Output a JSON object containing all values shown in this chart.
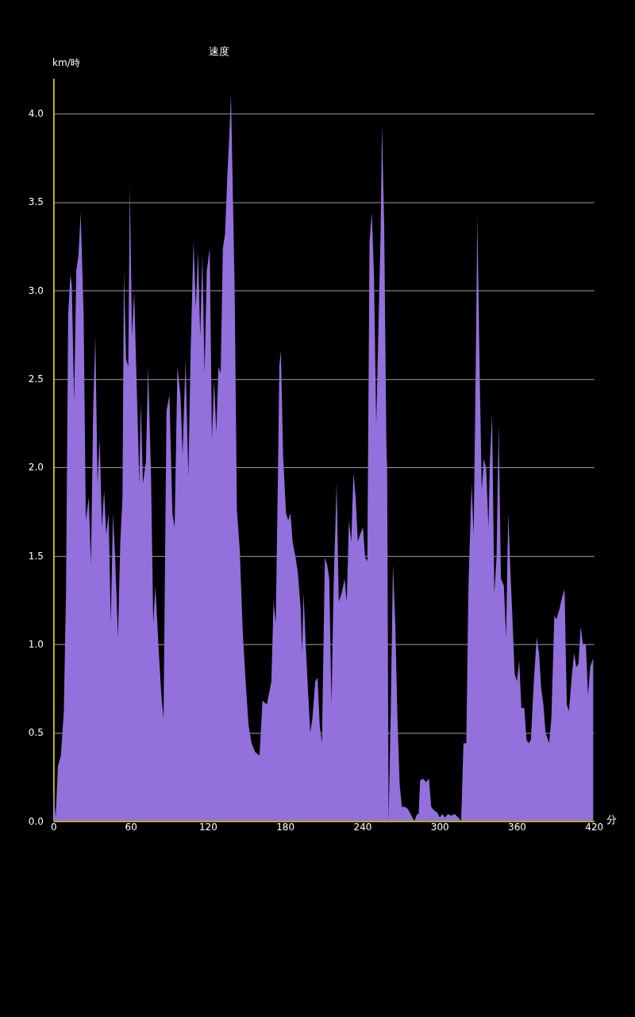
{
  "chart_data": {
    "type": "area",
    "title": "速度",
    "xlabel": "分",
    "ylabel": "km/時",
    "xlim": [
      0,
      420
    ],
    "ylim": [
      0,
      4.2
    ],
    "xticks": [
      0,
      60,
      120,
      180,
      240,
      300,
      360,
      420
    ],
    "yticks": [
      {
        "value": 0,
        "label": "0.0"
      },
      {
        "value": 0.5,
        "label": "0.5"
      },
      {
        "value": 1,
        "label": "1.0"
      },
      {
        "value": 1.5,
        "label": "1.5"
      },
      {
        "value": 2,
        "label": "2.0"
      },
      {
        "value": 2.5,
        "label": "2.5"
      },
      {
        "value": 3,
        "label": "3.0"
      },
      {
        "value": 3.5,
        "label": "3.5"
      },
      {
        "value": 4,
        "label": "4.0"
      }
    ],
    "grid": "y",
    "series": [
      {
        "color": "#9370db",
        "x": [
          0,
          1.7,
          3.4,
          5.7,
          8,
          9.7,
          11.4,
          13.1,
          14.2,
          16,
          17.7,
          19.4,
          21.1,
          23.4,
          25.1,
          27.4,
          29.1,
          30.8,
          32.5,
          34.2,
          35.9,
          37.6,
          39.3,
          41,
          42.8,
          44.5,
          46.2,
          47.9,
          50.1,
          51.9,
          53.6,
          54.7,
          56.4,
          58.1,
          59.3,
          61,
          62.7,
          64.4,
          66.7,
          67.8,
          69.5,
          71.8,
          73.5,
          75.8,
          77.5,
          79.2,
          81.5,
          83.8,
          85.5,
          87.8,
          90.1,
          92.4,
          94.1,
          96.3,
          98.6,
          100.3,
          102.6,
          104.8,
          106.6,
          108.8,
          110.6,
          112.3,
          114,
          115.7,
          117.4,
          119.1,
          121.4,
          123.1,
          124.8,
          126.5,
          128.2,
          129.9,
          131.6,
          133.3,
          135.1,
          136.8,
          137.9,
          139,
          140.8,
          142.5,
          144.7,
          147,
          149.3,
          151.6,
          153.9,
          156.7,
          160.1,
          162.4,
          165.8,
          169.3,
          171,
          172.7,
          174.4,
          175.5,
          176.7,
          178.4,
          180.7,
          182.4,
          184.1,
          185.8,
          188.1,
          189.8,
          192.1,
          193.2,
          194.3,
          196,
          197.7,
          199.5,
          201.2,
          203.4,
          205.2,
          206.9,
          208.6,
          210.9,
          212.6,
          214.3,
          216,
          217.7,
          220,
          221.7,
          224,
          226.2,
          227.9,
          229.6,
          231.4,
          233.1,
          234.8,
          236.5,
          238.2,
          240.5,
          242.2,
          243.9,
          245.6,
          247.4,
          249.1,
          250.8,
          252.5,
          254.2,
          255.3,
          257,
          258.7,
          259.3,
          260.4,
          262.1,
          263.8,
          265.6,
          267.3,
          269,
          270.7,
          273,
          275.2,
          277.5,
          280.4,
          282.6,
          283.8,
          284.9,
          287.2,
          289.5,
          291.8,
          293.5,
          295.8,
          298,
          300.3,
          302,
          304.3,
          306.6,
          308.9,
          311.7,
          314.6,
          316.8,
          318.6,
          320.8,
          322.5,
          323.7,
          324.9,
          326.5,
          328.3,
          329.4,
          331.1,
          332.8,
          334.5,
          336.3,
          338,
          339.1,
          340.8,
          342.6,
          344.3,
          346,
          347.7,
          350,
          351.7,
          353.4,
          355.1,
          356.8,
          358.4,
          360.2,
          361.9,
          363.6,
          365.9,
          367.6,
          369.3,
          371,
          373.3,
          375.5,
          377.3,
          379,
          380.7,
          382.4,
          385.2,
          386.9,
          389.2,
          390.9,
          393.2,
          395.4,
          397.2,
          398.9,
          400.6,
          402.9,
          404.6,
          406.3,
          408,
          409.7,
          411.4,
          413.7,
          415.4,
          417.1,
          419.4
        ],
        "values": [
          0.17,
          0.02,
          0.31,
          0.37,
          0.62,
          1.29,
          2.86,
          3.09,
          3.03,
          2.37,
          3.11,
          3.2,
          3.44,
          2.86,
          1.7,
          1.83,
          1.45,
          2.32,
          2.74,
          1.91,
          2.16,
          1.66,
          1.87,
          1.62,
          1.74,
          1.12,
          1.74,
          1.49,
          1.04,
          1.58,
          1.83,
          3.11,
          2.61,
          2.57,
          3.59,
          2.74,
          2.99,
          2.53,
          1.91,
          2.37,
          1.91,
          2.03,
          2.57,
          1.95,
          1.12,
          1.33,
          1.0,
          0.71,
          0.58,
          2.32,
          2.41,
          1.74,
          1.66,
          2.57,
          2.41,
          2.07,
          2.61,
          1.95,
          2.66,
          3.28,
          2.9,
          3.22,
          2.74,
          3.2,
          2.53,
          3.11,
          3.24,
          2.16,
          2.49,
          2.2,
          2.57,
          2.53,
          3.24,
          3.32,
          3.65,
          3.9,
          4.11,
          3.69,
          2.99,
          1.76,
          1.54,
          1.08,
          0.79,
          0.54,
          0.44,
          0.39,
          0.37,
          0.68,
          0.66,
          0.79,
          1.24,
          1.12,
          1.95,
          2.57,
          2.66,
          2.07,
          1.74,
          1.7,
          1.74,
          1.58,
          1.49,
          1.41,
          1.2,
          0.95,
          1.29,
          1.0,
          0.75,
          0.5,
          0.58,
          0.79,
          0.81,
          0.54,
          0.44,
          1.49,
          1.45,
          1.37,
          0.66,
          1.33,
          1.91,
          1.24,
          1.29,
          1.37,
          1.24,
          1.7,
          1.58,
          1.97,
          1.83,
          1.58,
          1.62,
          1.66,
          1.49,
          1.47,
          3.28,
          3.44,
          3.07,
          2.24,
          2.78,
          3.32,
          3.94,
          3.36,
          2.12,
          1.99,
          0,
          0.62,
          1.45,
          1.12,
          0.58,
          0.21,
          0.08,
          0.08,
          0.07,
          0.04,
          0,
          0.04,
          0.04,
          0.23,
          0.24,
          0.22,
          0.24,
          0.08,
          0.06,
          0.05,
          0.02,
          0.04,
          0.02,
          0.04,
          0.03,
          0.04,
          0.02,
          0,
          0.44,
          0.44,
          1.33,
          1.62,
          1.91,
          1.62,
          2.66,
          3.42,
          2.57,
          1.87,
          2.05,
          1.99,
          1.66,
          2.03,
          2.3,
          1.29,
          1.49,
          2.24,
          1.37,
          1.33,
          1.04,
          1.74,
          1.41,
          1.12,
          0.83,
          0.79,
          0.91,
          0.64,
          0.64,
          0.46,
          0.44,
          0.46,
          0.79,
          1.04,
          0.95,
          0.75,
          0.66,
          0.5,
          0.44,
          0.58,
          1.16,
          1.14,
          1.2,
          1.27,
          1.31,
          0.66,
          0.62,
          0.83,
          0.95,
          0.87,
          0.89,
          1.1,
          1.0,
          1.0,
          0.71,
          0.87,
          0.92
        ]
      }
    ]
  }
}
